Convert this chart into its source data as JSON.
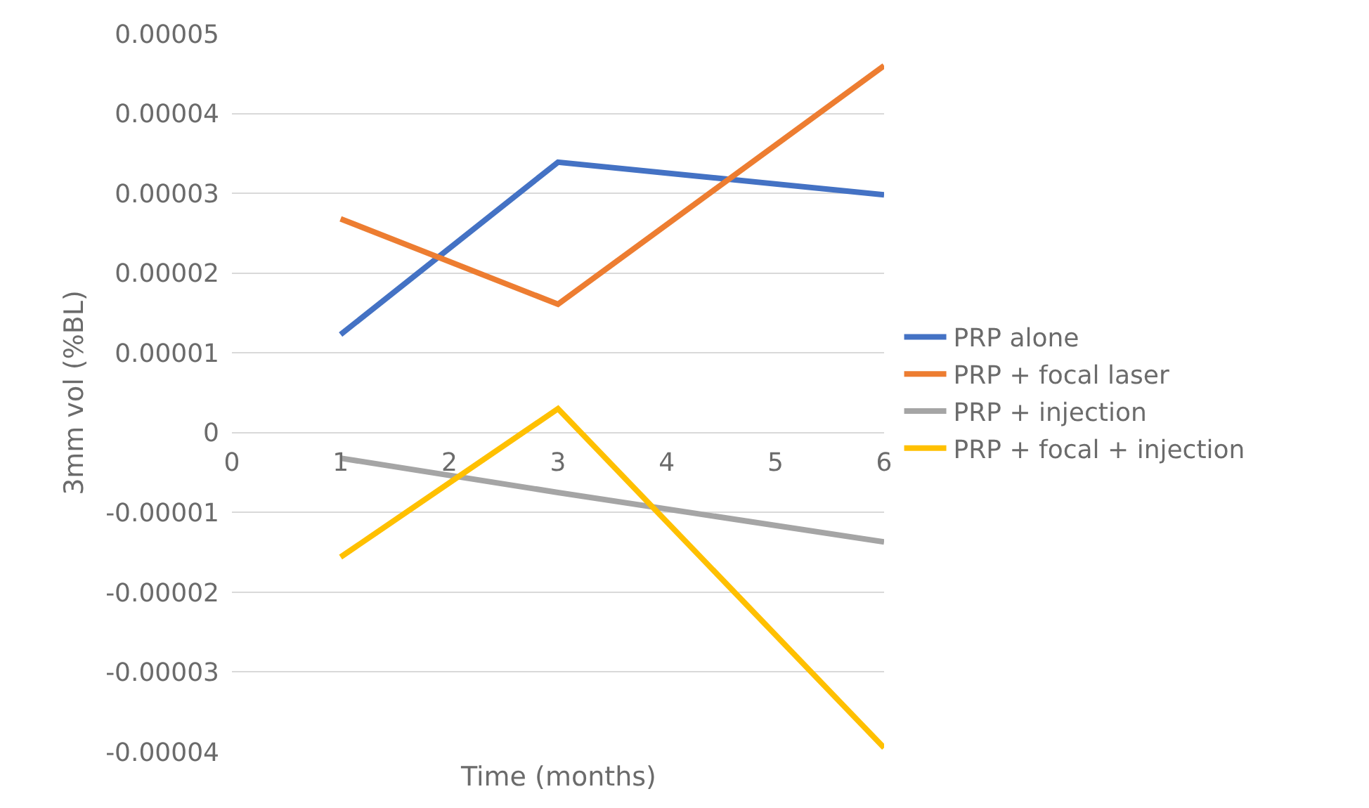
{
  "chart_data": {
    "type": "line",
    "xlabel": "Time (months)",
    "ylabel": "3mm vol (%BL)",
    "x": [
      1,
      3,
      6
    ],
    "series": [
      {
        "name": "PRP alone",
        "color": "#4472c4",
        "values": [
          1.23e-05,
          3.39e-05,
          2.98e-05
        ]
      },
      {
        "name": "PRP + focal laser",
        "color": "#ed7d31",
        "values": [
          2.68e-05,
          1.61e-05,
          4.6e-05
        ]
      },
      {
        "name": "PRP + injection",
        "color": "#a5a5a5",
        "values": [
          -3.2e-06,
          -7.5e-06,
          -1.37e-05
        ]
      },
      {
        "name": "PRP + focal + injection",
        "color": "#ffc000",
        "values": [
          -1.56e-05,
          3e-06,
          -3.95e-05
        ]
      }
    ],
    "xlim": [
      0,
      6
    ],
    "xticks": [
      0,
      1,
      2,
      3,
      4,
      5,
      6
    ],
    "ylim": [
      -4e-05,
      5e-05
    ],
    "yticks": [
      {
        "value": -4e-05,
        "label": "-0.00004"
      },
      {
        "value": -3e-05,
        "label": "-0.00003"
      },
      {
        "value": -2e-05,
        "label": "-0.00002"
      },
      {
        "value": -1e-05,
        "label": "-0.00001"
      },
      {
        "value": 0,
        "label": "0"
      },
      {
        "value": 1e-05,
        "label": "0.00001"
      },
      {
        "value": 2e-05,
        "label": "0.00002"
      },
      {
        "value": 3e-05,
        "label": "0.00003"
      },
      {
        "value": 4e-05,
        "label": "0.00004"
      },
      {
        "value": 5e-05,
        "label": "0.00005"
      }
    ],
    "grid": "y",
    "legend": "right",
    "marker": "none",
    "line_style": "solid"
  }
}
